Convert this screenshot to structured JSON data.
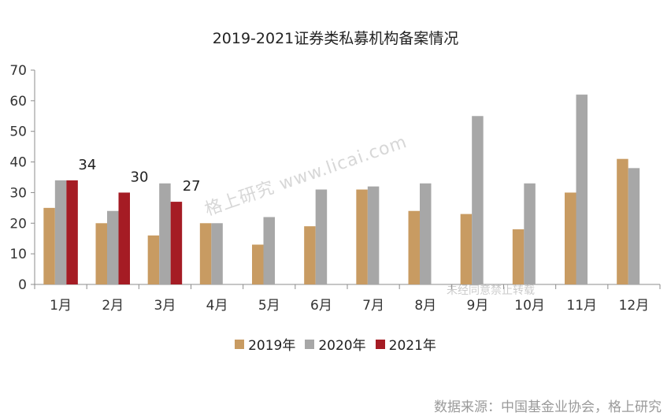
{
  "chart_data": {
    "type": "bar",
    "title": "2019-2021证券类私募机构备案情况",
    "categories": [
      "1月",
      "2月",
      "3月",
      "4月",
      "5月",
      "6月",
      "7月",
      "8月",
      "9月",
      "10月",
      "11月",
      "12月"
    ],
    "ylim": [
      0,
      70
    ],
    "yticks": [
      0,
      10,
      20,
      30,
      40,
      50,
      60,
      70
    ],
    "series": [
      {
        "name": "2019年",
        "color": "#c89b62",
        "values": [
          25,
          20,
          16,
          20,
          13,
          19,
          31,
          24,
          23,
          18,
          30,
          41
        ]
      },
      {
        "name": "2020年",
        "color": "#a7a7a7",
        "values": [
          34,
          24,
          33,
          20,
          22,
          31,
          32,
          33,
          55,
          33,
          62,
          38
        ]
      },
      {
        "name": "2021年",
        "color": "#a51c24",
        "values": [
          34,
          30,
          27,
          null,
          null,
          null,
          null,
          null,
          null,
          null,
          null,
          null
        ]
      }
    ],
    "data_labels": [
      {
        "category": "1月",
        "series": "2021年",
        "text": "34"
      },
      {
        "category": "2月",
        "series": "2021年",
        "text": "30"
      },
      {
        "category": "3月",
        "series": "2021年",
        "text": "27"
      }
    ],
    "legend_position": "bottom",
    "grid": false
  },
  "watermark": "格上研究  www.licai.com",
  "watermark_small": "未经同意禁止转载",
  "source_note": "数据来源：中国基金业协会，格上研究"
}
